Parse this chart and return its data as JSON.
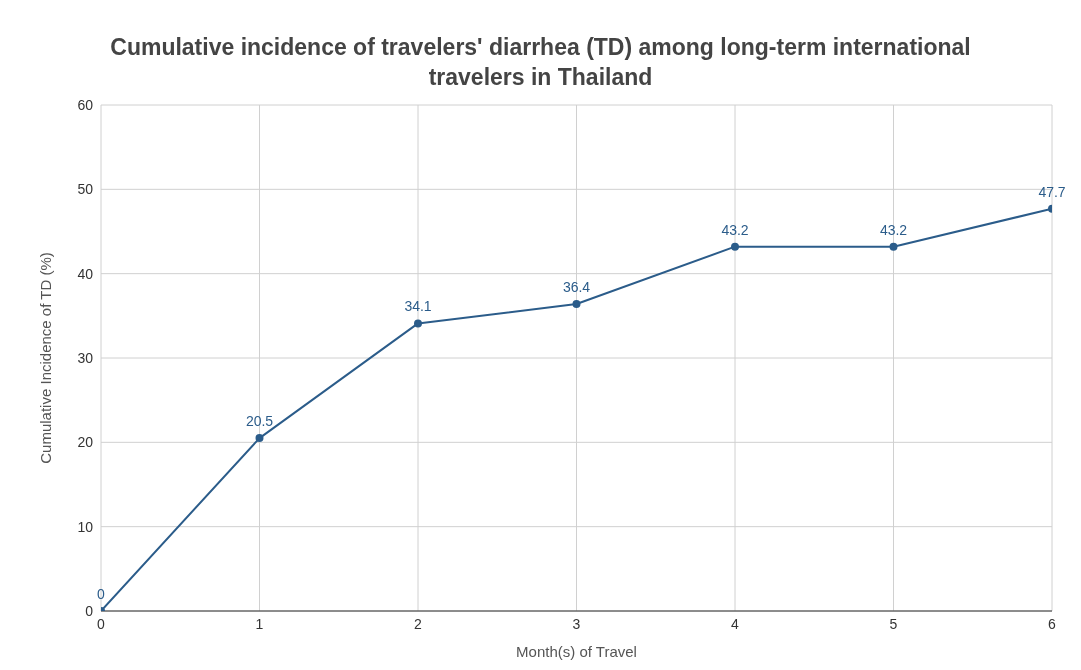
{
  "chart_data": {
    "type": "line",
    "title": "Cumulative incidence of travelers' diarrhea (TD) among long-term international travelers in Thailand",
    "xlabel": "Month(s) of Travel",
    "ylabel": "Cumulative Incidence  of TD (%)",
    "x": [
      0,
      1,
      2,
      3,
      4,
      5,
      6
    ],
    "series": [
      {
        "color": "#2b5c8a",
        "values": [
          0,
          20.5,
          34.1,
          36.4,
          43.2,
          43.2,
          47.7
        ]
      }
    ],
    "xlim": [
      0,
      6
    ],
    "xticks": [
      0,
      1,
      2,
      3,
      4,
      5,
      6
    ],
    "ylim": [
      0,
      60
    ],
    "yticks": [
      0,
      10,
      20,
      30,
      40,
      50,
      60
    ],
    "grid": true,
    "marker": "circle",
    "data_labels": true
  }
}
